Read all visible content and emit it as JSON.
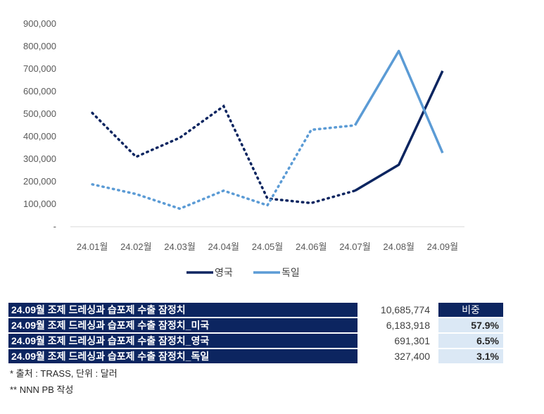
{
  "chart_data": {
    "type": "line",
    "categories": [
      "24.01월",
      "24.02월",
      "24.03월",
      "24.04월",
      "24.05월",
      "24.06월",
      "24.07월",
      "24.08월",
      "24.09월"
    ],
    "series": [
      {
        "name": "영국",
        "color": "#0c2560",
        "values": [
          505000,
          310000,
          395000,
          535000,
          125000,
          105000,
          160000,
          275000,
          691301
        ]
      },
      {
        "name": "독일",
        "color": "#5b9bd5",
        "values": [
          188000,
          145000,
          80000,
          160000,
          95000,
          430000,
          450000,
          780000,
          327400
        ]
      }
    ],
    "yticks": [
      "-",
      "100,000",
      "200,000",
      "300,000",
      "400,000",
      "500,000",
      "600,000",
      "700,000",
      "800,000",
      "900,000"
    ],
    "ylim": [
      0,
      900000
    ],
    "solid_from_index": 6,
    "legend_position": "bottom"
  },
  "table": {
    "rows": [
      {
        "label": "24.09월 조제 드레싱과 습포제 수출 잠정치",
        "value": "10,685,774",
        "pct": "비중"
      },
      {
        "label": "24.09월 조제 드레싱과 습포제 수출 잠정치_미국",
        "value": "6,183,918",
        "pct": "57.9%"
      },
      {
        "label": "24.09월 조제 드레싱과 습포제 수출 잠정치_영국",
        "value": "691,301",
        "pct": "6.5%"
      },
      {
        "label": "24.09월 조제 드레싱과 습포제 수출 잠정치_독일",
        "value": "327,400",
        "pct": "3.1%"
      }
    ]
  },
  "notes": {
    "source": "* 출처 : TRASS, 단위 : 달러",
    "author": "** NNN PB 작성"
  }
}
